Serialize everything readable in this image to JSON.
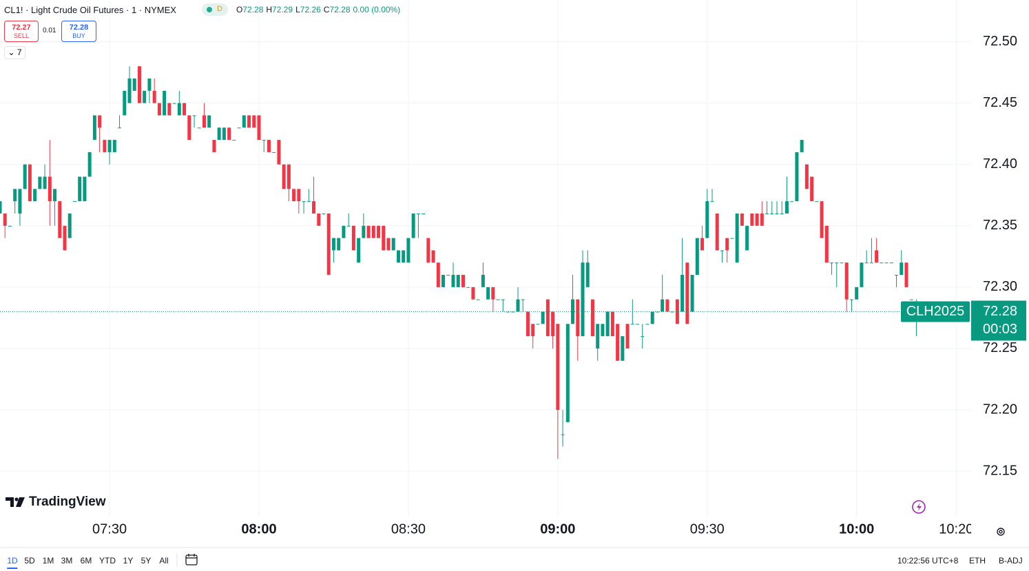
{
  "header": {
    "symbol": "CL1! · Light Crude Oil Futures · 1 · NYMEX",
    "badge": "D",
    "ohlc_labels": [
      "O",
      "H",
      "L",
      "C"
    ],
    "change": "0.00 (0.00%)"
  },
  "trade": {
    "sell_price": "72.27",
    "sell": "SELL",
    "spread": "0.01",
    "buy_price": "72.28",
    "buy": "BUY",
    "indicators": "7"
  },
  "logo": "TradingView",
  "toolbar": {
    "ranges": [
      "1D",
      "5D",
      "1M",
      "3M",
      "6M",
      "YTD",
      "1Y",
      "5Y",
      "All"
    ],
    "clock": "10:22:56 UTC+8",
    "session": "ETH",
    "adjust": "B-ADJ"
  },
  "chart_data": {
    "type": "candlestick",
    "up_color": "#089981",
    "down_color": "#f23645",
    "grid": true,
    "symbol_label": "CLH2025",
    "countdown": "00:03",
    "xlim": [
      "07:08",
      "10:23"
    ],
    "xticks": [
      {
        "value": "07:30",
        "label": "07:30"
      },
      {
        "value": "08:00",
        "label": "08:00"
      },
      {
        "value": "08:30",
        "label": "08:30"
      },
      {
        "value": "09:00",
        "label": "09:00"
      },
      {
        "value": "09:30",
        "label": "09:30"
      },
      {
        "value": "10:00",
        "label": "10:00"
      },
      {
        "value": "10:20",
        "label": "10:20"
      }
    ],
    "ylim": [
      72.113,
      72.534
    ],
    "yticks": [
      72.15,
      {
        "value": 72.2,
        "label": "72.20"
      },
      72.25,
      {
        "value": 72.3,
        "label": "72.30"
      },
      72.35,
      {
        "value": 72.4,
        "label": "72.40"
      },
      72.45,
      {
        "value": 72.5,
        "label": "72.50"
      }
    ],
    "x": [
      "07:08",
      "07:09",
      "07:10",
      "07:11",
      "07:12",
      "07:13",
      "07:14",
      "07:15",
      "07:16",
      "07:17",
      "07:18",
      "07:19",
      "07:20",
      "07:21",
      "07:22",
      "07:23",
      "07:24",
      "07:25",
      "07:26",
      "07:27",
      "07:28",
      "07:29",
      "07:30",
      "07:31",
      "07:32",
      "07:33",
      "07:34",
      "07:35",
      "07:36",
      "07:37",
      "07:38",
      "07:39",
      "07:40",
      "07:41",
      "07:42",
      "07:43",
      "07:44",
      "07:45",
      "07:46",
      "07:47",
      "07:48",
      "07:49",
      "07:50",
      "07:51",
      "07:52",
      "07:53",
      "07:54",
      "07:55",
      "07:56",
      "07:57",
      "07:58",
      "07:59",
      "08:00",
      "08:01",
      "08:02",
      "08:03",
      "08:04",
      "08:05",
      "08:06",
      "08:07",
      "08:08",
      "08:09",
      "08:10",
      "08:11",
      "08:12",
      "08:13",
      "08:14",
      "08:15",
      "08:16",
      "08:17",
      "08:18",
      "08:19",
      "08:20",
      "08:21",
      "08:22",
      "08:23",
      "08:24",
      "08:25",
      "08:26",
      "08:27",
      "08:28",
      "08:29",
      "08:30",
      "08:31",
      "08:32",
      "08:33",
      "08:34",
      "08:35",
      "08:36",
      "08:37",
      "08:38",
      "08:39",
      "08:40",
      "08:41",
      "08:42",
      "08:43",
      "08:44",
      "08:45",
      "08:46",
      "08:47",
      "08:48",
      "08:49",
      "08:50",
      "08:51",
      "08:52",
      "08:53",
      "08:54",
      "08:55",
      "08:56",
      "08:57",
      "08:58",
      "08:59",
      "09:00",
      "09:01",
      "09:02",
      "09:03",
      "09:04",
      "09:05",
      "09:06",
      "09:07",
      "09:08",
      "09:09",
      "09:10",
      "09:11",
      "09:12",
      "09:13",
      "09:14",
      "09:15",
      "09:16",
      "09:17",
      "09:18",
      "09:19",
      "09:20",
      "09:21",
      "09:22",
      "09:23",
      "09:24",
      "09:25",
      "09:26",
      "09:27",
      "09:28",
      "09:29",
      "09:30",
      "09:31",
      "09:32",
      "09:33",
      "09:34",
      "09:35",
      "09:36",
      "09:37",
      "09:38",
      "09:39",
      "09:40",
      "09:41",
      "09:42",
      "09:43",
      "09:44",
      "09:45",
      "09:46",
      "09:47",
      "09:48",
      "09:49",
      "09:50",
      "09:51",
      "09:52",
      "09:53",
      "09:54",
      "09:55",
      "09:56",
      "09:57",
      "09:58",
      "09:59",
      "10:00",
      "10:01",
      "10:02",
      "10:03",
      "10:04",
      "10:05",
      "10:06",
      "10:07",
      "10:08",
      "10:09",
      "10:10",
      "10:11",
      "10:12"
    ],
    "open": [
      72.36,
      72.36,
      72.35,
      72.37,
      72.36,
      72.38,
      72.4,
      72.37,
      72.38,
      72.38,
      72.39,
      72.37,
      72.37,
      72.35,
      72.34,
      72.37,
      72.37,
      72.37,
      72.39,
      72.42,
      72.44,
      72.42,
      72.41,
      72.41,
      72.43,
      72.44,
      72.45,
      72.46,
      72.48,
      72.45,
      72.46,
      72.46,
      72.45,
      72.44,
      72.45,
      72.45,
      72.44,
      72.45,
      72.44,
      72.44,
      72.43,
      72.44,
      72.43,
      72.42,
      72.42,
      72.42,
      72.43,
      72.42,
      72.43,
      72.43,
      72.44,
      72.44,
      72.44,
      72.42,
      72.42,
      72.41,
      72.42,
      72.4,
      72.4,
      72.38,
      72.38,
      72.37,
      72.37,
      72.37,
      72.36,
      72.36,
      72.36,
      72.33,
      72.33,
      72.34,
      72.35,
      72.35,
      72.32,
      72.34,
      72.35,
      72.35,
      72.35,
      72.35,
      72.34,
      72.33,
      72.32,
      72.32,
      72.32,
      72.34,
      72.36,
      72.36,
      72.34,
      72.33,
      72.32,
      72.3,
      72.31,
      72.3,
      72.3,
      72.31,
      72.3,
      72.3,
      72.29,
      72.3,
      72.29,
      72.3,
      72.29,
      72.29,
      72.28,
      72.28,
      72.28,
      72.29,
      72.28,
      72.27,
      72.27,
      72.27,
      72.29,
      72.28,
      72.27,
      72.18,
      72.19,
      72.27,
      72.29,
      72.26,
      72.3,
      72.29,
      72.25,
      72.26,
      72.26,
      72.28,
      72.27,
      72.24,
      72.27,
      72.27,
      72.27,
      72.26,
      72.27,
      72.27,
      72.28,
      72.28,
      72.29,
      72.28,
      72.29,
      72.28,
      72.32,
      72.28,
      72.31,
      72.34,
      72.34,
      72.37,
      72.36,
      72.33,
      72.34,
      72.34,
      72.32,
      72.36,
      72.33,
      72.36,
      72.36,
      72.36,
      72.36,
      72.36,
      72.36,
      72.36,
      72.36,
      72.37,
      72.37,
      72.41,
      72.4,
      72.39,
      72.37,
      72.37,
      72.35,
      72.32,
      72.32,
      72.32,
      72.32,
      72.29,
      72.29,
      72.3,
      72.32,
      72.32,
      72.33,
      72.32,
      72.32,
      72.32,
      72.31,
      72.31,
      72.32,
      72.29,
      72.28
    ],
    "high": [
      72.37,
      72.36,
      72.35,
      72.38,
      72.38,
      72.4,
      72.4,
      72.38,
      72.39,
      72.4,
      72.42,
      72.38,
      72.37,
      72.35,
      72.36,
      72.37,
      72.39,
      72.39,
      72.41,
      72.44,
      72.44,
      72.42,
      72.42,
      72.42,
      72.44,
      72.46,
      72.48,
      72.47,
      72.48,
      72.46,
      72.47,
      72.47,
      72.45,
      72.46,
      72.45,
      72.45,
      72.46,
      72.45,
      72.44,
      72.44,
      72.43,
      72.45,
      72.44,
      72.42,
      72.43,
      72.43,
      72.43,
      72.42,
      72.43,
      72.44,
      72.44,
      72.44,
      72.44,
      72.42,
      72.42,
      72.41,
      72.42,
      72.4,
      72.4,
      72.38,
      72.38,
      72.37,
      72.38,
      72.39,
      72.36,
      72.36,
      72.36,
      72.34,
      72.34,
      72.35,
      72.36,
      72.35,
      72.34,
      72.36,
      72.35,
      72.35,
      72.35,
      72.35,
      72.34,
      72.34,
      72.33,
      72.33,
      72.34,
      72.36,
      72.36,
      72.36,
      72.34,
      72.33,
      72.32,
      72.31,
      72.31,
      72.32,
      72.31,
      72.31,
      72.3,
      72.3,
      72.29,
      72.32,
      72.3,
      72.3,
      72.29,
      72.29,
      72.28,
      72.28,
      72.3,
      72.29,
      72.28,
      72.27,
      72.27,
      72.28,
      72.29,
      72.28,
      72.27,
      72.2,
      72.27,
      72.31,
      72.29,
      72.33,
      72.33,
      72.29,
      72.27,
      72.27,
      72.28,
      72.28,
      72.27,
      72.26,
      72.27,
      72.29,
      72.27,
      72.27,
      72.27,
      72.28,
      72.28,
      72.31,
      72.29,
      72.28,
      72.29,
      72.34,
      72.32,
      72.31,
      72.34,
      72.35,
      72.38,
      72.38,
      72.36,
      72.33,
      72.34,
      72.34,
      72.36,
      72.36,
      72.35,
      72.36,
      72.36,
      72.37,
      72.37,
      72.37,
      72.37,
      72.37,
      72.39,
      72.37,
      72.41,
      72.42,
      72.4,
      72.39,
      72.37,
      72.37,
      72.35,
      72.32,
      72.32,
      72.32,
      72.32,
      72.29,
      72.3,
      72.32,
      72.33,
      72.34,
      72.34,
      72.32,
      72.32,
      72.32,
      72.31,
      72.33,
      72.32,
      72.29,
      72.29
    ],
    "low": [
      72.36,
      72.34,
      72.35,
      72.36,
      72.35,
      72.38,
      72.37,
      72.37,
      72.38,
      72.38,
      72.35,
      72.35,
      72.34,
      72.33,
      72.34,
      72.37,
      72.37,
      72.37,
      72.39,
      72.42,
      72.41,
      72.41,
      72.4,
      72.41,
      72.43,
      72.44,
      72.45,
      72.46,
      72.45,
      72.45,
      72.45,
      72.45,
      72.44,
      72.44,
      72.44,
      72.45,
      72.44,
      72.44,
      72.42,
      72.43,
      72.43,
      72.43,
      72.43,
      72.41,
      72.42,
      72.42,
      72.42,
      72.42,
      72.43,
      72.43,
      72.43,
      72.43,
      72.42,
      72.41,
      72.41,
      72.41,
      72.4,
      72.38,
      72.37,
      72.37,
      72.36,
      72.36,
      72.37,
      72.36,
      72.35,
      72.36,
      72.31,
      72.32,
      72.33,
      72.34,
      72.35,
      72.33,
      72.32,
      72.34,
      72.34,
      72.34,
      72.34,
      72.33,
      72.33,
      72.33,
      72.32,
      72.32,
      72.32,
      72.34,
      72.34,
      72.36,
      72.32,
      72.32,
      72.3,
      72.3,
      72.31,
      72.3,
      72.3,
      72.3,
      72.3,
      72.29,
      72.29,
      72.3,
      72.29,
      72.28,
      72.29,
      72.28,
      72.28,
      72.28,
      72.28,
      72.28,
      72.26,
      72.25,
      72.27,
      72.27,
      72.26,
      72.25,
      72.16,
      72.17,
      72.19,
      72.27,
      72.24,
      72.26,
      72.3,
      72.26,
      72.24,
      72.26,
      72.26,
      72.26,
      72.24,
      72.24,
      72.25,
      72.27,
      72.27,
      72.25,
      72.27,
      72.27,
      72.28,
      72.28,
      72.28,
      72.28,
      72.27,
      72.28,
      72.27,
      72.28,
      72.31,
      72.33,
      72.34,
      72.37,
      72.33,
      72.32,
      72.32,
      72.34,
      72.32,
      72.35,
      72.33,
      72.35,
      72.35,
      72.35,
      72.36,
      72.36,
      72.36,
      72.36,
      72.36,
      72.37,
      72.37,
      72.41,
      72.38,
      72.37,
      72.37,
      72.34,
      72.32,
      72.31,
      72.3,
      72.32,
      72.28,
      72.28,
      72.29,
      72.3,
      72.32,
      72.32,
      72.32,
      72.32,
      72.32,
      72.32,
      72.3,
      72.31,
      72.3,
      72.29,
      72.26
    ],
    "close": [
      72.37,
      72.35,
      72.35,
      72.38,
      72.38,
      72.4,
      72.37,
      72.38,
      72.39,
      72.39,
      72.37,
      72.38,
      72.34,
      72.33,
      72.36,
      72.37,
      72.39,
      72.39,
      72.41,
      72.44,
      72.43,
      72.41,
      72.42,
      72.42,
      72.43,
      72.46,
      72.47,
      72.47,
      72.45,
      72.46,
      72.47,
      72.45,
      72.44,
      72.46,
      72.44,
      72.45,
      72.45,
      72.44,
      72.42,
      72.44,
      72.43,
      72.43,
      72.44,
      72.41,
      72.43,
      72.43,
      72.42,
      72.42,
      72.43,
      72.44,
      72.43,
      72.43,
      72.42,
      72.42,
      72.41,
      72.41,
      72.4,
      72.38,
      72.38,
      72.37,
      72.37,
      72.37,
      72.37,
      72.36,
      72.35,
      72.36,
      72.31,
      72.34,
      72.34,
      72.35,
      72.35,
      72.33,
      72.34,
      72.35,
      72.34,
      72.34,
      72.34,
      72.33,
      72.33,
      72.34,
      72.33,
      72.33,
      72.34,
      72.36,
      72.36,
      72.36,
      72.32,
      72.32,
      72.3,
      72.31,
      72.31,
      72.31,
      72.31,
      72.3,
      72.3,
      72.29,
      72.29,
      72.31,
      72.3,
      72.29,
      72.29,
      72.29,
      72.28,
      72.28,
      72.29,
      72.29,
      72.26,
      72.26,
      72.27,
      72.28,
      72.26,
      72.26,
      72.2,
      72.18,
      72.27,
      72.29,
      72.26,
      72.32,
      72.32,
      72.26,
      72.27,
      72.27,
      72.28,
      72.26,
      72.24,
      72.26,
      72.25,
      72.27,
      72.27,
      72.26,
      72.27,
      72.28,
      72.28,
      72.29,
      72.28,
      72.28,
      72.27,
      72.31,
      72.27,
      72.31,
      72.34,
      72.33,
      72.37,
      72.37,
      72.33,
      72.33,
      72.33,
      72.34,
      72.36,
      72.35,
      72.35,
      72.35,
      72.35,
      72.35,
      72.36,
      72.36,
      72.36,
      72.36,
      72.37,
      72.37,
      72.41,
      72.42,
      72.38,
      72.37,
      72.37,
      72.34,
      72.32,
      72.32,
      72.32,
      72.32,
      72.29,
      72.29,
      72.3,
      72.32,
      72.32,
      72.32,
      72.32,
      72.32,
      72.32,
      72.32,
      72.31,
      72.32,
      72.3,
      72.29,
      72.28
    ]
  }
}
